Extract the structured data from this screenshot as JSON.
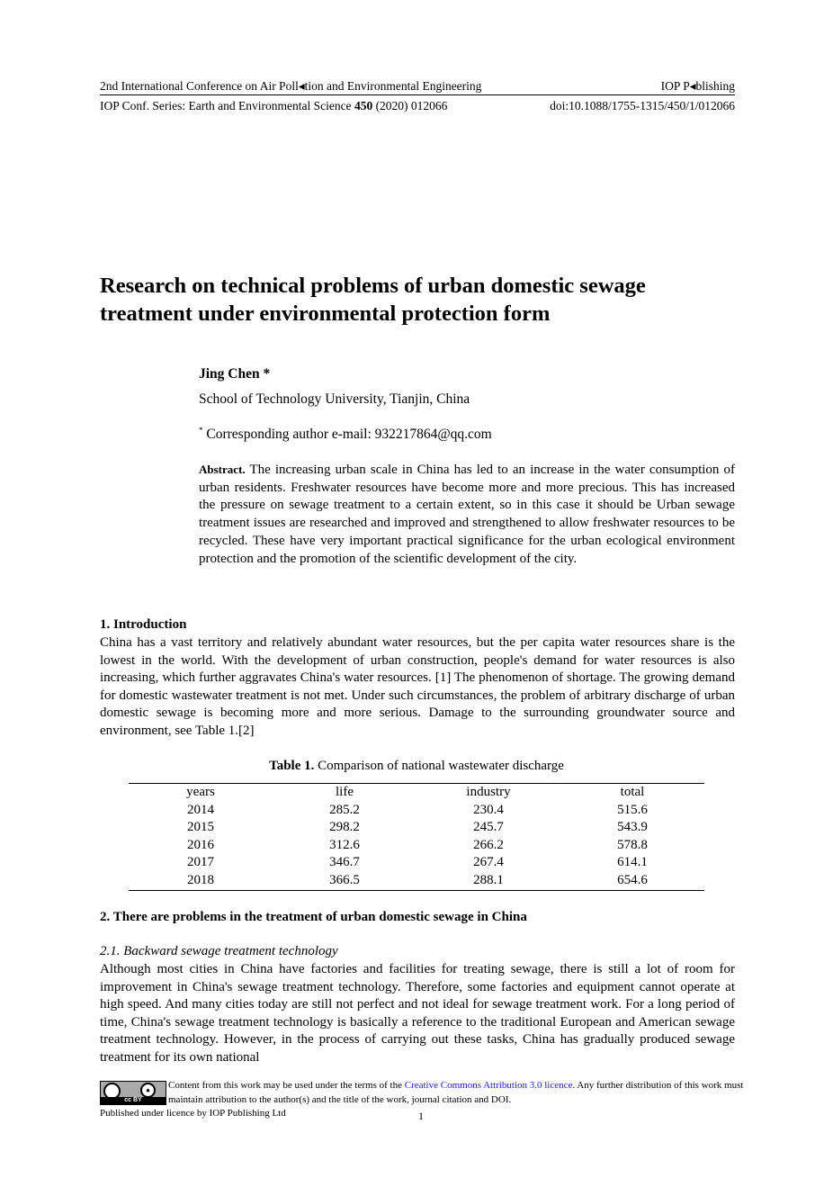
{
  "header": {
    "conference": "2nd International Conference on Air Poll◂tion and Environmental Engineering",
    "publisher": "IOP P◂blishing",
    "series_pre": "IOP Conf. Series: Earth and Environmental Science ",
    "volume": "450",
    "series_post": " (2020) 012066",
    "doi": "doi:10.1088/1755-1315/450/1/012066"
  },
  "title_line1": "Research on technical problems of urban domestic sewage",
  "title_line2": "treatment under environmental protection form",
  "author": "Jing Chen *",
  "affiliation": "School of Technology University, Tianjin, China",
  "corresponding_mark": "*",
  "corresponding": " Corresponding author e-mail: 932217864@qq.com",
  "abstract_label": "Abstract.",
  "abstract_text": " The increasing urban scale in China has led to an increase in the water consumption of urban residents. Freshwater resources have become more and more precious. This has increased the pressure on sewage treatment to a certain extent, so in this case it should be Urban sewage treatment issues are researched and improved and strengthened to allow freshwater resources to be recycled. These have very important practical significance for the urban ecological environment protection and the promotion of the scientific development of the city.",
  "section1_heading": "1.  Introduction",
  "section1_text": "China has a vast territory and relatively abundant water resources, but the per capita water resources share is the lowest in the world. With the development of urban construction, people's demand for water resources is also increasing, which further aggravates China's water resources. [1] The phenomenon of shortage. The growing demand for domestic wastewater treatment is not met. Under such circumstances, the problem of arbitrary discharge of urban domestic sewage is becoming more and more serious. Damage to the surrounding groundwater source and environment, see Table 1.[2]",
  "table": {
    "caption_label": "Table 1.",
    "caption_text": " Comparison of national wastewater discharge",
    "headers": [
      "years",
      "life",
      "industry",
      "total"
    ],
    "rows": [
      [
        "2014",
        "285.2",
        "230.4",
        "515.6"
      ],
      [
        "2015",
        "298.2",
        "245.7",
        "543.9"
      ],
      [
        "2016",
        "312.6",
        "266.2",
        "578.8"
      ],
      [
        "2017",
        "346.7",
        "267.4",
        "614.1"
      ],
      [
        "2018",
        "366.5",
        "288.1",
        "654.6"
      ]
    ]
  },
  "section2_heading": "2.  There are problems in the treatment of urban domestic sewage in China",
  "subsection21_heading": "2.1.  Backward sewage treatment technology",
  "subsection21_text": "Although most cities in China have factories and facilities for treating sewage, there is still a lot of room for improvement in China's sewage treatment technology. Therefore, some factories and equipment cannot operate at high speed. And many cities today are still not perfect and not ideal for sewage treatment work. For a long period of time, China's sewage treatment technology is basically a reference to the traditional European and American sewage treatment technology. However, in the process of carrying out these tasks, China has gradually produced sewage treatment for its own national",
  "footer": {
    "license_pre": "Content from this work may be used under the terms of the ",
    "license_link": "Creative Commons Attribution 3.0 licence",
    "license_post": ".  Any further distribution of this work must maintain attribution to the author(s) and the title of the work, journal citation and DOI.",
    "cc_badge": "cc BY",
    "published": "Published under licence by IOP Publishing Ltd",
    "page_number": "1"
  },
  "colors": {
    "link": "#1a1aff",
    "text": "#000000"
  }
}
